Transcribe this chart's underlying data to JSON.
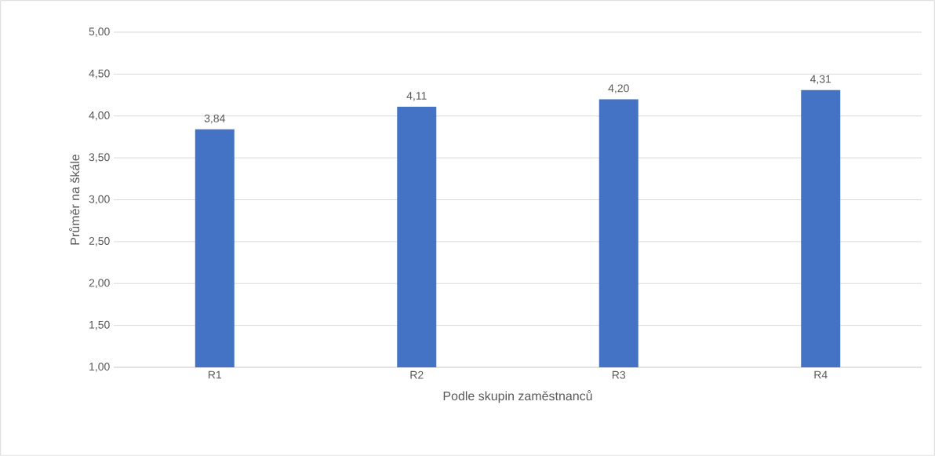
{
  "chart_data": {
    "type": "bar",
    "xlabel": "Podle skupin zaměstnanců",
    "ylabel": "Průměr na škále",
    "categories": [
      "R1",
      "R2",
      "R3",
      "R4"
    ],
    "values": [
      3.84,
      4.11,
      4.2,
      4.31
    ],
    "value_labels": [
      "3,84",
      "4,11",
      "4,20",
      "4,31"
    ],
    "color": "#4472c4",
    "ylim": [
      1,
      5
    ],
    "yticks": [
      {
        "value": 1,
        "label": "1,00"
      },
      {
        "value": 1.5,
        "label": "1,50"
      },
      {
        "value": 2,
        "label": "2,00"
      },
      {
        "value": 2.5,
        "label": "2,50"
      },
      {
        "value": 3,
        "label": "3,00"
      },
      {
        "value": 3.5,
        "label": "3,50"
      },
      {
        "value": 4,
        "label": "4,00"
      },
      {
        "value": 4.5,
        "label": "4,50"
      },
      {
        "value": 5,
        "label": "5,00"
      }
    ],
    "grid": "y"
  }
}
